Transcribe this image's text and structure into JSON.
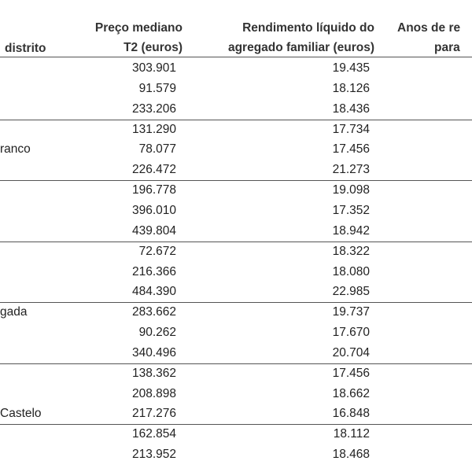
{
  "table": {
    "header": {
      "region": "distrito",
      "price": [
        "Preço mediano",
        "T2 (euros)"
      ],
      "income": [
        "Rendimento líquido do",
        "agregado familiar (euros)"
      ],
      "years": [
        "Anos de re",
        "para"
      ]
    },
    "rows": [
      [
        null,
        "303.901",
        "19.435"
      ],
      [
        null,
        "91.579",
        "18.126"
      ],
      [
        null,
        "233.206",
        "18.436"
      ],
      [
        null,
        "131.290",
        "17.734"
      ],
      [
        "ranco",
        "78.077",
        "17.456"
      ],
      [
        null,
        "226.472",
        "21.273"
      ],
      [
        null,
        "196.778",
        "19.098"
      ],
      [
        null,
        "396.010",
        "17.352"
      ],
      [
        null,
        "439.804",
        "18.942"
      ],
      [
        null,
        "72.672",
        "18.322"
      ],
      [
        null,
        "216.366",
        "18.080"
      ],
      [
        null,
        "484.390",
        "22.985"
      ],
      [
        "gada",
        "283.662",
        "19.737"
      ],
      [
        null,
        "90.262",
        "17.670"
      ],
      [
        null,
        "340.496",
        "20.704"
      ],
      [
        null,
        "138.362",
        "17.456"
      ],
      [
        null,
        "208.898",
        "18.662"
      ],
      [
        "Castelo",
        "217.276",
        "16.848"
      ],
      [
        null,
        "162.854",
        "18.112"
      ],
      [
        null,
        "213.952",
        "18.468"
      ]
    ]
  }
}
